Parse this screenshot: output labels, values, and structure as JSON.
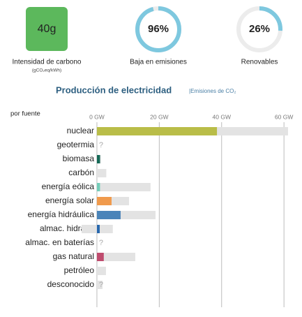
{
  "stats": {
    "intensity": {
      "value": 40,
      "label": "40g",
      "caption": "Intensidad de carbono",
      "unit": "(gCO₂eq/kWh)",
      "color": "#5cb85c"
    },
    "low_carbon": {
      "value": 96,
      "value_label": "96%",
      "caption": "Baja en emisiones",
      "color": "#7ec8df"
    },
    "renewable": {
      "value": 26,
      "value_label": "26%",
      "caption": "Renovables",
      "color": "#7ec8df"
    }
  },
  "chart_data": {
    "type": "hbar",
    "title": "Producción de electricidad",
    "subtitle": "|Emisiones de CO₂",
    "y_label": "por fuente",
    "unknown_label": "?",
    "categories": [
      "nuclear",
      "geotermia",
      "biomasa",
      "carbón",
      "energía eólica",
      "energía solar",
      "energía hidráulica",
      "almac. hidrául.",
      "almac. en baterías",
      "gas natural",
      "petróleo",
      "desconocido"
    ],
    "values": [
      38.5,
      null,
      1,
      0,
      1,
      4.7,
      7.6,
      0.9,
      null,
      2.2,
      0,
      null
    ],
    "capacity_max": [
      61.3,
      null,
      1.3,
      3,
      17.2,
      10.3,
      18.8,
      5.1,
      null,
      12.3,
      2.9,
      1.8
    ],
    "capacity_min": [
      0,
      null,
      0,
      0,
      0,
      0,
      0,
      -4.9,
      null,
      0,
      0,
      0
    ],
    "colors": [
      "#b9bd48",
      "#9e3b2f",
      "#166a57",
      "#333333",
      "#74cdb9",
      "#f09a4c",
      "#4a84b9",
      "#2868ad",
      "#2868ad",
      "#bf4c6e",
      "#7a5a3a",
      "#999999"
    ],
    "capacity_color": "#e3e3e3",
    "xlim": [
      -5,
      62
    ],
    "xticks": [
      {
        "value": 0,
        "label": "0 GW"
      },
      {
        "value": 20,
        "label": "20 GW"
      },
      {
        "value": 40,
        "label": "40 GW"
      },
      {
        "value": 60,
        "label": "60 GW"
      }
    ],
    "grid": true
  }
}
